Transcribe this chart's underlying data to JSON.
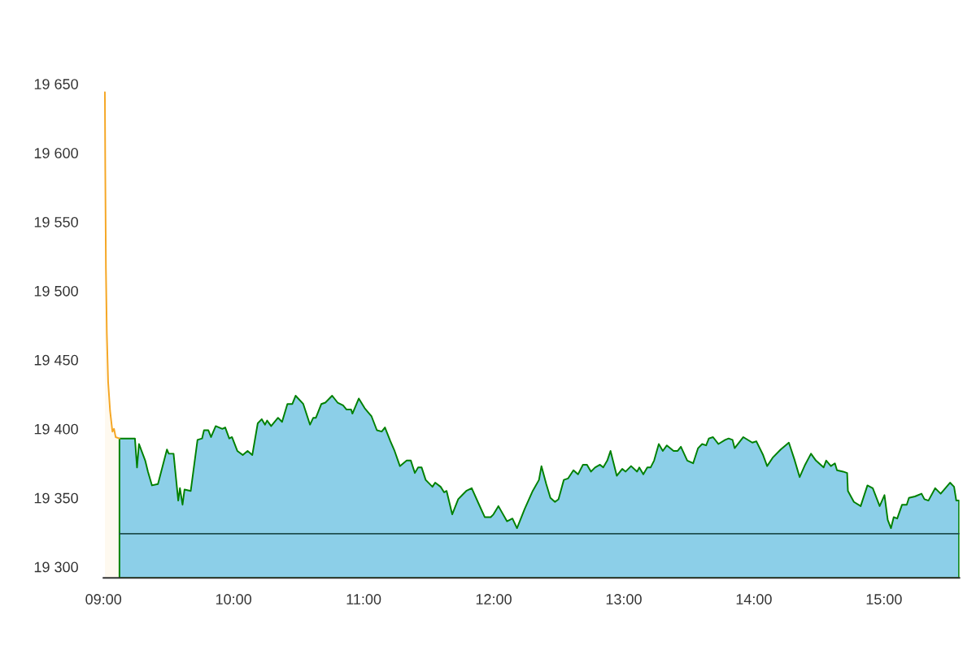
{
  "chart_data": {
    "type": "area",
    "xlim": [
      9,
      15.58
    ],
    "xticks": [
      {
        "value": 9,
        "label": "09:00"
      },
      {
        "value": 10,
        "label": "10:00"
      },
      {
        "value": 11,
        "label": "11:00"
      },
      {
        "value": 12,
        "label": "12:00"
      },
      {
        "value": 13,
        "label": "13:00"
      },
      {
        "value": 14,
        "label": "14:00"
      },
      {
        "value": 15,
        "label": "15:00"
      }
    ],
    "ylim": [
      19292,
      19650
    ],
    "yticks": [
      {
        "value": 19300,
        "label": "19 300"
      },
      {
        "value": 19350,
        "label": "19 350"
      },
      {
        "value": 19400,
        "label": "19 400"
      },
      {
        "value": 19450,
        "label": "19 450"
      },
      {
        "value": 19500,
        "label": "19 500"
      },
      {
        "value": 19550,
        "label": "19 550"
      },
      {
        "value": 19600,
        "label": "19 600"
      },
      {
        "value": 19650,
        "label": "19 650"
      }
    ],
    "grid": false,
    "legend": false,
    "ref_lines": [
      {
        "axis": "y",
        "value": 19324,
        "color": "#1f4f4f"
      }
    ],
    "series": [
      {
        "color": "#f5a623",
        "x": [
          9.011,
          9.014,
          9.019,
          9.026,
          9.036,
          9.051,
          9.069,
          9.081,
          9.094,
          9.123
        ],
        "values": [
          19644,
          19587,
          19516,
          19469,
          19434,
          19413,
          19398,
          19400,
          19394,
          19393
        ]
      },
      {
        "color": "#8ccfe8",
        "x": [
          9.123,
          9.242,
          9.258,
          9.273,
          9.321,
          9.342,
          9.373,
          9.419,
          9.488,
          9.502,
          9.539,
          9.575,
          9.588,
          9.608,
          9.623,
          9.671,
          9.723,
          9.758,
          9.773,
          9.806,
          9.827,
          9.863,
          9.914,
          9.936,
          9.967,
          9.988,
          10.029,
          10.071,
          10.108,
          10.144,
          10.186,
          10.217,
          10.242,
          10.258,
          10.289,
          10.342,
          10.373,
          10.414,
          10.452,
          10.477,
          10.536,
          10.588,
          10.613,
          10.633,
          10.675,
          10.706,
          10.758,
          10.8,
          10.842,
          10.869,
          10.904,
          10.914,
          10.963,
          11.008,
          11.061,
          11.102,
          11.139,
          11.164,
          11.206,
          11.238,
          11.279,
          11.331,
          11.363,
          11.394,
          11.419,
          11.446,
          11.477,
          11.529,
          11.55,
          11.592,
          11.619,
          11.638,
          11.681,
          11.727,
          11.758,
          11.789,
          11.831,
          11.883,
          11.931,
          11.977,
          11.998,
          12.036,
          12.102,
          12.144,
          12.179,
          12.238,
          12.3,
          12.348,
          12.367,
          12.404,
          12.436,
          12.471,
          12.498,
          12.539,
          12.571,
          12.613,
          12.648,
          12.686,
          12.717,
          12.748,
          12.779,
          12.817,
          12.842,
          12.873,
          12.898,
          12.946,
          12.988,
          13.014,
          13.056,
          13.102,
          13.119,
          13.15,
          13.181,
          13.206,
          13.233,
          13.269,
          13.3,
          13.331,
          13.383,
          13.414,
          13.439,
          13.488,
          13.533,
          13.571,
          13.602,
          13.633,
          13.654,
          13.686,
          13.727,
          13.779,
          13.806,
          13.836,
          13.852,
          13.919,
          13.988,
          14.019,
          14.071,
          14.102,
          14.144,
          14.206,
          14.269,
          14.311,
          14.352,
          14.394,
          14.439,
          14.477,
          14.536,
          14.556,
          14.592,
          14.623,
          14.639,
          14.686,
          14.717,
          14.723,
          14.769,
          14.821,
          14.873,
          14.914,
          14.967,
          15.004,
          15.029,
          15.054,
          15.075,
          15.102,
          15.139,
          15.175,
          15.192,
          15.238,
          15.289,
          15.311,
          15.342,
          15.394,
          15.436,
          15.508,
          15.539,
          15.556,
          15.577
        ],
        "values": [
          19393,
          19393,
          19372,
          19389,
          19377,
          19369,
          19359,
          19360,
          19385,
          19382,
          19382,
          19348,
          19357,
          19345,
          19356,
          19355,
          19392,
          19393,
          19399,
          19399,
          19394,
          19402,
          19400,
          19401,
          19393,
          19394,
          19384,
          19381,
          19384,
          19381,
          19404,
          19407,
          19403,
          19406,
          19402,
          19408,
          19405,
          19418,
          19418,
          19424,
          19418,
          19403,
          19408,
          19408,
          19418,
          19419,
          19424,
          19419,
          19417,
          19414,
          19414,
          19411,
          19422,
          19415,
          19409,
          19399,
          19398,
          19401,
          19391,
          19384,
          19373,
          19377,
          19377,
          19368,
          19372,
          19372,
          19363,
          19358,
          19361,
          19358,
          19354,
          19355,
          19338,
          19349,
          19352,
          19355,
          19357,
          19346,
          19336,
          19336,
          19338,
          19344,
          19333,
          19335,
          19328,
          19342,
          19355,
          19363,
          19373,
          19360,
          19350,
          19347,
          19349,
          19363,
          19364,
          19370,
          19367,
          19374,
          19374,
          19369,
          19372,
          19374,
          19372,
          19377,
          19384,
          19366,
          19371,
          19369,
          19373,
          19369,
          19372,
          19367,
          19372,
          19372,
          19377,
          19389,
          19384,
          19388,
          19384,
          19384,
          19387,
          19377,
          19375,
          19386,
          19389,
          19388,
          19393,
          19394,
          19389,
          19392,
          19393,
          19392,
          19386,
          19394,
          19390,
          19391,
          19381,
          19373,
          19379,
          19385,
          19390,
          19378,
          19365,
          19374,
          19382,
          19377,
          19372,
          19377,
          19373,
          19375,
          19370,
          19369,
          19368,
          19355,
          19347,
          19344,
          19359,
          19357,
          19344,
          19352,
          19334,
          19328,
          19336,
          19335,
          19345,
          19345,
          19350,
          19351,
          19353,
          19349,
          19348,
          19357,
          19353,
          19361,
          19358,
          19348,
          19348
        ]
      }
    ]
  }
}
